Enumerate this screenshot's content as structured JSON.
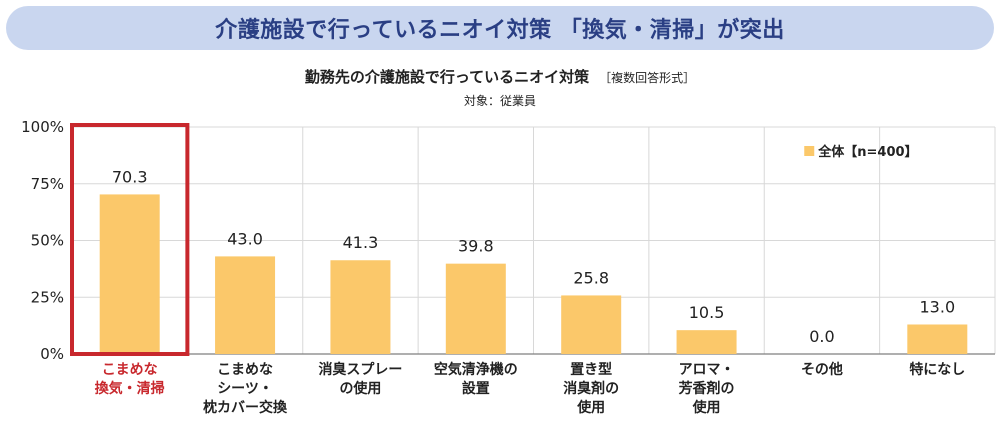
{
  "banner": {
    "text": "介護施設で行っているニオイ対策 「換気・清掃」が突出"
  },
  "chart_data": {
    "type": "bar",
    "title": "勤務先の介護施設で行っているニオイ対策",
    "subtitle": "［複数回答形式］",
    "target_label": "対象：従業員",
    "categories": [
      [
        "こまめな",
        "換気・清掃"
      ],
      [
        "こまめな",
        "シーツ・",
        "枕カバー交換"
      ],
      [
        "消臭スプレー",
        "の使用"
      ],
      [
        "空気清浄機の",
        "設置"
      ],
      [
        "置き型",
        "消臭剤の",
        "使用"
      ],
      [
        "アロマ・",
        "芳香剤の",
        "使用"
      ],
      [
        "その他"
      ],
      [
        "特になし"
      ]
    ],
    "series": [
      {
        "name": "全体【n=400】",
        "values": [
          70.3,
          43.0,
          41.3,
          39.8,
          25.8,
          10.5,
          0.0,
          13.0
        ]
      }
    ],
    "value_labels": [
      "70.3",
      "43.0",
      "41.3",
      "39.8",
      "25.8",
      "10.5",
      "0.0",
      "13.0"
    ],
    "y_ticks": [
      "0%",
      "25%",
      "50%",
      "75%",
      "100%"
    ],
    "y_tick_values": [
      0,
      25,
      50,
      75,
      100
    ],
    "ylim": [
      0,
      100
    ],
    "highlight_index": 0,
    "legend_position": "top-right",
    "colors": {
      "bar": "#fbc86a",
      "highlight": "#c8282d",
      "grid": "#d8d8d8",
      "axis": "#7f7f7f"
    }
  }
}
